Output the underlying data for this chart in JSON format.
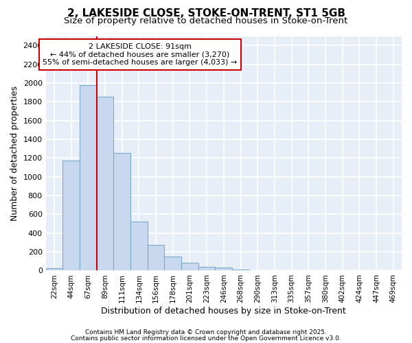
{
  "title1": "2, LAKESIDE CLOSE, STOKE-ON-TRENT, ST1 5GB",
  "title2": "Size of property relative to detached houses in Stoke-on-Trent",
  "xlabel": "Distribution of detached houses by size in Stoke-on-Trent",
  "ylabel": "Number of detached properties",
  "bar_values": [
    25,
    1170,
    1975,
    1850,
    1250,
    525,
    275,
    150,
    85,
    40,
    30,
    10,
    5,
    2,
    1,
    1,
    1,
    1,
    1,
    1,
    1
  ],
  "bin_labels": [
    "22sqm",
    "44sqm",
    "67sqm",
    "89sqm",
    "111sqm",
    "134sqm",
    "156sqm",
    "178sqm",
    "201sqm",
    "223sqm",
    "246sqm",
    "268sqm",
    "290sqm",
    "313sqm",
    "335sqm",
    "357sqm",
    "380sqm",
    "402sqm",
    "424sqm",
    "447sqm",
    "469sqm"
  ],
  "bar_color": "#c8d8ee",
  "bar_edge_color": "#7aabcc",
  "vline_color": "#cc0000",
  "annotation_title": "2 LAKESIDE CLOSE: 91sqm",
  "annotation_line1": "← 44% of detached houses are smaller (3,270)",
  "annotation_line2": "55% of semi-detached houses are larger (4,033) →",
  "annotation_box_color": "#ffffff",
  "annotation_box_edge": "#cc0000",
  "background_color": "#e8eef8",
  "ylim": [
    0,
    2500
  ],
  "yticks": [
    0,
    200,
    400,
    600,
    800,
    1000,
    1200,
    1400,
    1600,
    1800,
    2000,
    2200,
    2400
  ],
  "footer1": "Contains HM Land Registry data © Crown copyright and database right 2025.",
  "footer2": "Contains public sector information licensed under the Open Government Licence v3.0.",
  "title_fontsize": 11,
  "subtitle_fontsize": 9.5,
  "tick_fontsize": 7.5,
  "label_fontsize": 9,
  "footer_fontsize": 6.5
}
